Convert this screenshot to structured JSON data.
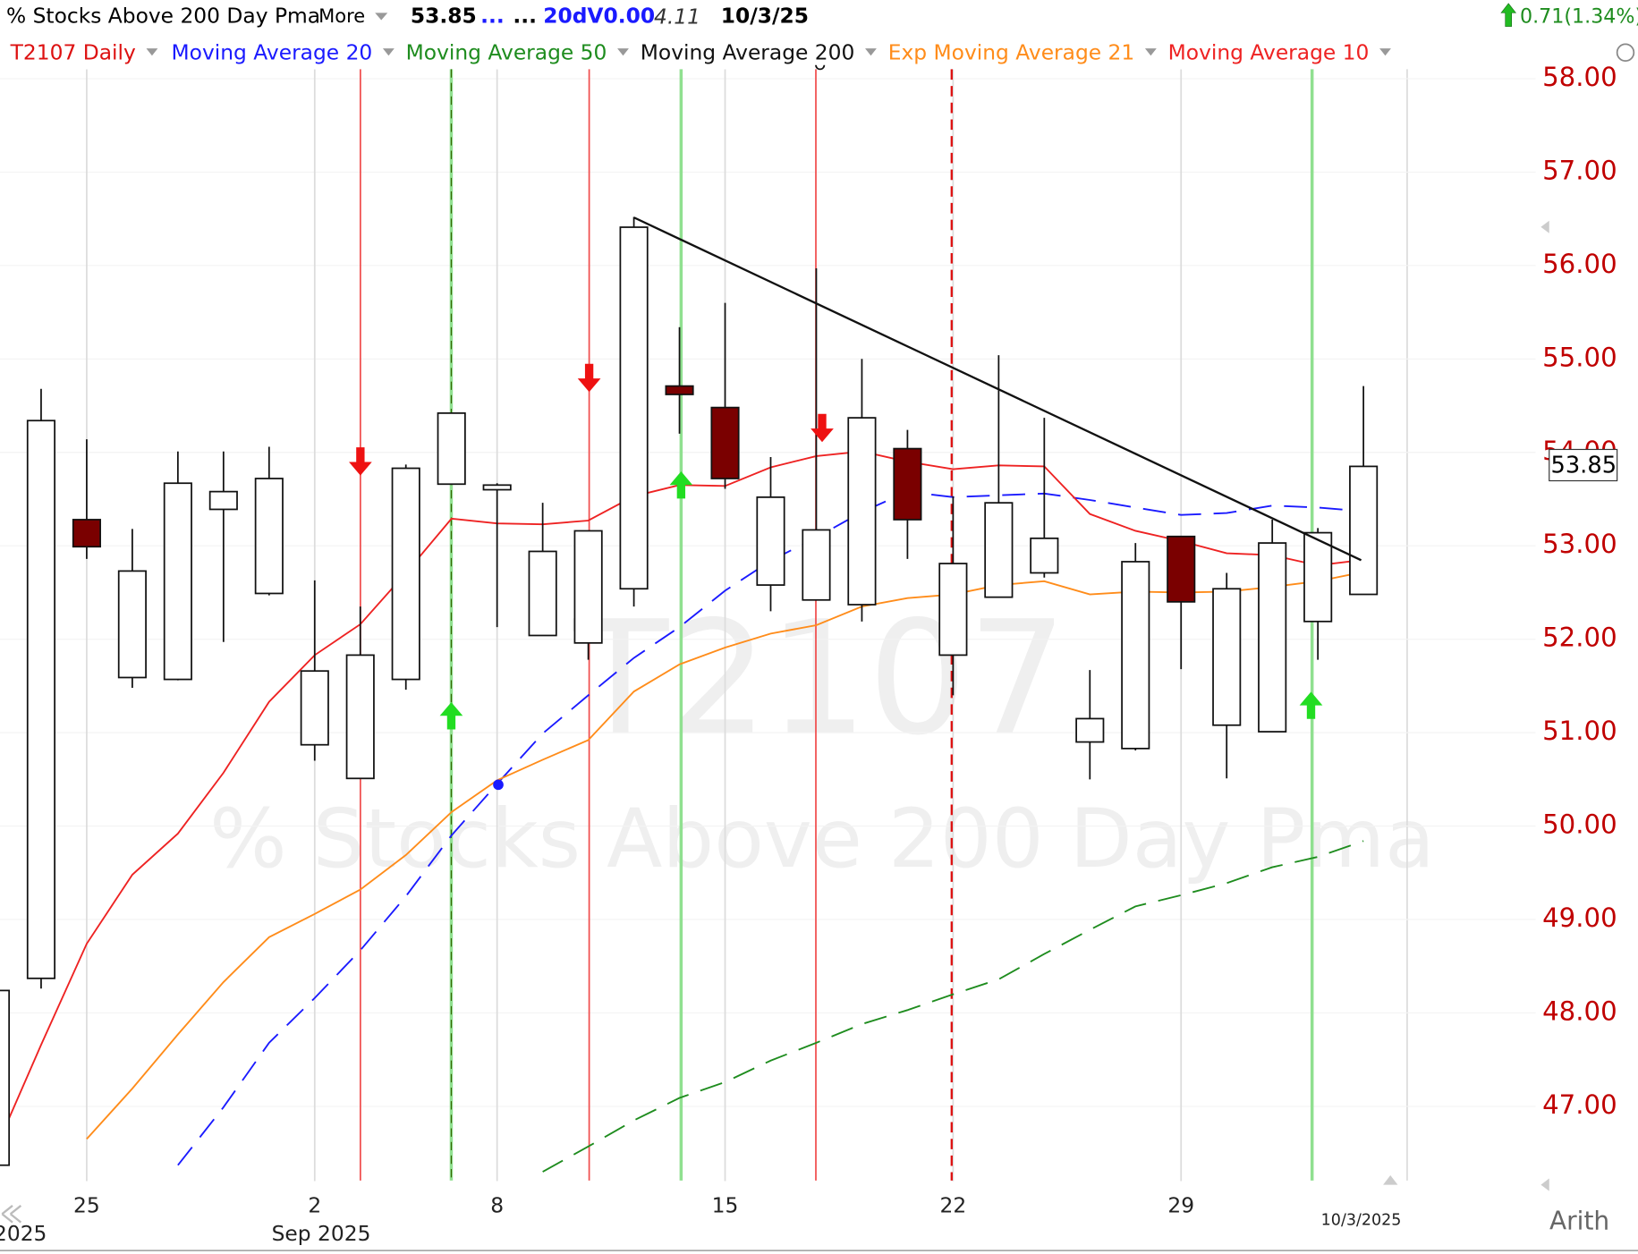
{
  "header": {
    "title": "% Stocks Above 200 Day Pma",
    "more": "More",
    "price": "53.85",
    "dots1": "...",
    "dots2": "...",
    "volume": "20dV0.00",
    "extra": "4.11",
    "date": "10/3/25",
    "change": "0.71(1.34%)"
  },
  "chart_data": {
    "type": "candlestick",
    "title": "% Stocks Above 200 Day Pma",
    "watermark": "T2107",
    "symbol_legend": "T2107 Daily",
    "categories": [
      null,
      null,
      "25",
      null,
      null,
      null,
      null,
      "2",
      null,
      null,
      null,
      "8",
      null,
      null,
      null,
      null,
      "15",
      null,
      null,
      null,
      null,
      "22",
      null,
      null,
      null,
      null,
      "29",
      null,
      null,
      null,
      null
    ],
    "open": [
      46.37,
      48.37,
      53.28,
      51.59,
      51.57,
      53.39,
      52.49,
      50.87,
      50.51,
      51.57,
      53.66,
      53.6,
      52.04,
      51.96,
      52.54,
      54.71,
      54.48,
      52.58,
      52.42,
      52.37,
      54.04,
      51.83,
      52.45,
      52.71,
      50.9,
      50.83,
      53.1,
      51.08,
      51.01,
      52.19,
      52.48
    ],
    "high": [
      48.24,
      54.68,
      54.14,
      53.18,
      54.01,
      54.01,
      54.06,
      52.63,
      52.35,
      53.87,
      54.42,
      53.67,
      53.46,
      53.16,
      56.52,
      55.34,
      55.6,
      53.95,
      55.97,
      55.0,
      54.24,
      53.53,
      55.04,
      54.37,
      51.67,
      53.03,
      53.1,
      52.71,
      53.28,
      53.19,
      54.71
    ],
    "low": [
      46.37,
      48.26,
      52.86,
      51.48,
      51.56,
      51.97,
      52.47,
      50.7,
      50.51,
      51.46,
      53.66,
      52.13,
      52.04,
      51.78,
      52.35,
      54.2,
      53.61,
      52.3,
      52.42,
      52.19,
      52.86,
      51.4,
      52.45,
      52.66,
      50.5,
      50.81,
      51.68,
      50.51,
      51.01,
      51.78,
      52.48
    ],
    "close": [
      48.24,
      54.34,
      52.99,
      52.73,
      53.67,
      53.58,
      53.72,
      51.66,
      51.83,
      53.83,
      54.42,
      53.65,
      52.94,
      53.16,
      56.41,
      54.62,
      53.72,
      53.52,
      53.17,
      54.37,
      53.28,
      52.81,
      53.46,
      53.08,
      51.15,
      52.83,
      52.4,
      52.54,
      53.03,
      53.14,
      53.85
    ],
    "series": [
      {
        "name": "Moving Average 20",
        "color": "#1a1aff",
        "dashed": true,
        "values": [
          null,
          null,
          null,
          null,
          46.37,
          46.99,
          47.68,
          48.16,
          48.67,
          49.25,
          49.9,
          50.45,
          50.99,
          51.4,
          51.8,
          52.13,
          52.52,
          52.84,
          53.09,
          53.36,
          53.58,
          53.52,
          53.54,
          53.56,
          53.49,
          53.41,
          53.33,
          53.35,
          53.43,
          53.41,
          53.37
        ]
      },
      {
        "name": "Moving Average 50",
        "color": "#1e8c1e",
        "dashed": true,
        "values": [
          null,
          null,
          null,
          null,
          null,
          null,
          null,
          null,
          null,
          null,
          null,
          null,
          46.3,
          46.57,
          46.85,
          47.09,
          47.26,
          47.49,
          47.68,
          47.88,
          48.03,
          48.2,
          48.36,
          48.63,
          48.89,
          49.14,
          49.26,
          49.39,
          49.56,
          49.67,
          49.84
        ]
      },
      {
        "name": "Moving Average 200",
        "color": "#000000",
        "dashed": false,
        "values": [
          null,
          null,
          null,
          null,
          null,
          null,
          null,
          null,
          null,
          null,
          null,
          null,
          null,
          null,
          null,
          null,
          null,
          null,
          null,
          null,
          null,
          null,
          null,
          null,
          null,
          null,
          null,
          null,
          null,
          null,
          null
        ]
      },
      {
        "name": "Exp Moving Average 21",
        "color": "#ff8c1a",
        "dashed": false,
        "values": [
          null,
          null,
          46.65,
          47.19,
          47.77,
          48.33,
          48.81,
          49.06,
          49.32,
          49.69,
          50.15,
          50.49,
          50.71,
          50.92,
          51.44,
          51.73,
          51.91,
          52.06,
          52.15,
          52.35,
          52.44,
          52.48,
          52.58,
          52.62,
          52.48,
          52.51,
          52.5,
          52.51,
          52.56,
          52.62,
          52.72
        ]
      },
      {
        "name": "Moving Average 10",
        "color": "#ee2222",
        "dashed": false,
        "values": [
          46.54,
          47.66,
          48.74,
          49.48,
          49.92,
          50.57,
          51.33,
          51.83,
          52.16,
          52.71,
          53.29,
          53.24,
          53.23,
          53.27,
          53.53,
          53.65,
          53.64,
          53.84,
          53.96,
          54.01,
          53.9,
          53.82,
          53.86,
          53.85,
          53.34,
          53.16,
          53.05,
          52.92,
          52.9,
          52.79,
          52.85
        ]
      }
    ],
    "up_color": "#ffffff",
    "down_color": "#7a0000",
    "ylim": [
      46.2,
      58.1
    ],
    "yticks": [
      {
        "value": 47,
        "label": "47.00"
      },
      {
        "value": 48,
        "label": "48.00"
      },
      {
        "value": 49,
        "label": "49.00"
      },
      {
        "value": 50,
        "label": "50.00"
      },
      {
        "value": 51,
        "label": "51.00"
      },
      {
        "value": 52,
        "label": "52.00"
      },
      {
        "value": 53,
        "label": "53.00"
      },
      {
        "value": 54,
        "label": "54.00"
      },
      {
        "value": 55,
        "label": "55.00"
      },
      {
        "value": 56,
        "label": "56.00"
      },
      {
        "value": 57,
        "label": "57.00"
      },
      {
        "value": 58,
        "label": "58.00"
      }
    ],
    "grid": true,
    "month_label": "Sep 2025",
    "year_label": "2025",
    "last_date_label": "10/3/2025",
    "scale_label": "Arith"
  }
}
